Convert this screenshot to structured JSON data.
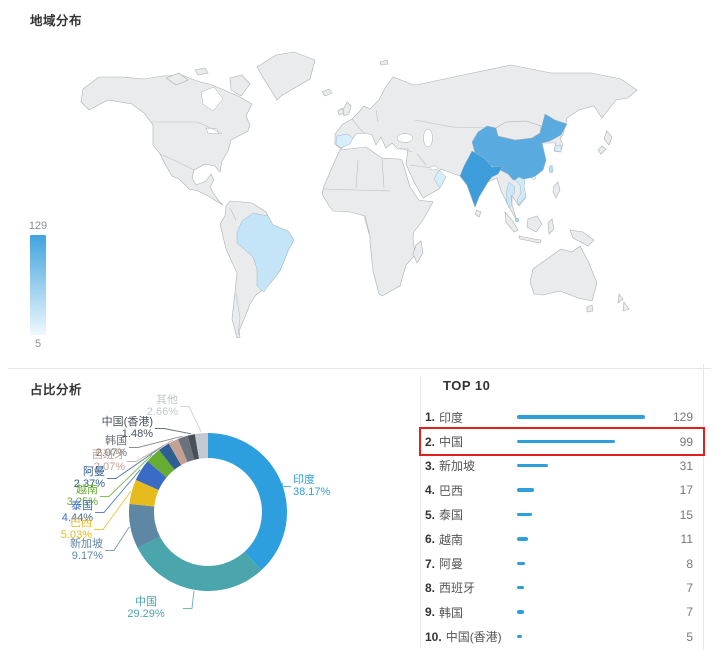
{
  "header": {
    "map_section_title": "地域分布",
    "pie_section_title": "占比分析",
    "top10_section_title": "TOP 10"
  },
  "legend": {
    "max_label": "129",
    "min_label": "5",
    "top_color": "#41A3DD",
    "bottom_color": "#EFF9FE"
  },
  "chart_data": [
    {
      "type": "heatmap",
      "subtype": "choropleth-world-map",
      "title": "地域分布",
      "scale_min": 5,
      "scale_max": 129,
      "regions": [
        {
          "name": "印度",
          "value": 129,
          "color": "#3D9DDA"
        },
        {
          "name": "中国",
          "value": 99,
          "color": "#59AADE"
        },
        {
          "name": "新加坡",
          "value": 31,
          "color": "#A5D7F2"
        },
        {
          "name": "巴西",
          "value": 17,
          "color": "#C4E5F7"
        },
        {
          "name": "泰国",
          "value": 15,
          "color": "#C9E7F8"
        },
        {
          "name": "越南",
          "value": 11,
          "color": "#CFEAF9"
        },
        {
          "name": "阿曼",
          "value": 8,
          "color": "#D6EDFA"
        },
        {
          "name": "西班牙",
          "value": 7,
          "color": "#D9EEFB"
        },
        {
          "name": "韩国",
          "value": 7,
          "color": "#D9EEFB"
        },
        {
          "name": "中国(香港)",
          "value": 5,
          "color": "#DFF1FC"
        },
        {
          "name": "台湾",
          "color": "#B9DFF5"
        }
      ]
    },
    {
      "type": "pie",
      "subtype": "donut",
      "title": "占比分析",
      "slices": [
        {
          "label": "印度",
          "pct": 38.17,
          "pct_text": "38.17%",
          "color": "#2E9FDE"
        },
        {
          "label": "中国",
          "pct": 29.29,
          "pct_text": "29.29%",
          "color": "#4AA5AD"
        },
        {
          "label": "新加坡",
          "pct": 9.17,
          "pct_text": "9.17%",
          "color": "#5E87A3"
        },
        {
          "label": "巴西",
          "pct": 5.03,
          "pct_text": "5.03%",
          "color": "#E5BB1D"
        },
        {
          "label": "泰国",
          "pct": 4.44,
          "pct_text": "4.44%",
          "color": "#3A6CC6"
        },
        {
          "label": "越南",
          "pct": 3.25,
          "pct_text": "3.25%",
          "color": "#67AC33"
        },
        {
          "label": "阿曼",
          "pct": 2.37,
          "pct_text": "2.37%",
          "color": "#2F5E93"
        },
        {
          "label": "西班牙",
          "pct": 2.07,
          "pct_text": "2.07%",
          "color": "#C3A294"
        },
        {
          "label": "韩国",
          "pct": 2.07,
          "pct_text": "2.07%",
          "color": "#6A727B"
        },
        {
          "label": "中国(香港)",
          "pct": 1.48,
          "pct_text": "1.48%",
          "color": "#474F59"
        },
        {
          "label": "其他",
          "pct": 2.66,
          "pct_text": "2.66%",
          "color": "#C4C9CF"
        }
      ]
    },
    {
      "type": "bar",
      "title": "TOP 10",
      "bar_color": "#2D9FDB",
      "xmax": 129,
      "highlight_index": 1,
      "highlight_color": "#E21F1F",
      "rows": [
        {
          "rank": "1.",
          "name": "印度",
          "value": 129
        },
        {
          "rank": "2.",
          "name": "中国",
          "value": 99
        },
        {
          "rank": "3.",
          "name": "新加坡",
          "value": 31
        },
        {
          "rank": "4.",
          "name": "巴西",
          "value": 17
        },
        {
          "rank": "5.",
          "name": "泰国",
          "value": 15
        },
        {
          "rank": "6.",
          "name": "越南",
          "value": 11
        },
        {
          "rank": "7.",
          "name": "阿曼",
          "value": 8
        },
        {
          "rank": "8.",
          "name": "西班牙",
          "value": 7
        },
        {
          "rank": "9.",
          "name": "韩国",
          "value": 7
        },
        {
          "rank": "10.",
          "name": "中国(香港)",
          "value": 5
        }
      ]
    }
  ]
}
